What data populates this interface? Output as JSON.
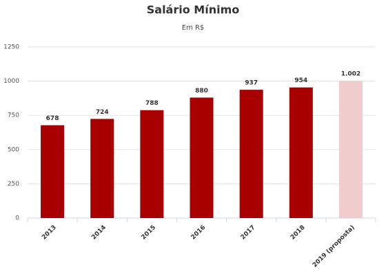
{
  "chart_data": {
    "type": "bar",
    "title": "Salário Mínimo",
    "subtitle": "Em R$",
    "categories": [
      "2013",
      "2014",
      "2015",
      "2016",
      "2017",
      "2018",
      "2019 (proposta)"
    ],
    "values": [
      678,
      724,
      788,
      880,
      937,
      954,
      1002
    ],
    "value_labels": [
      "678",
      "724",
      "788",
      "880",
      "937",
      "954",
      "1.002"
    ],
    "colors": [
      "#a80000",
      "#a80000",
      "#a80000",
      "#a80000",
      "#a80000",
      "#a80000",
      "#f0cccc"
    ],
    "ylim": [
      0,
      1250
    ],
    "yticks": [
      0,
      250,
      500,
      750,
      1000,
      1250
    ],
    "grid": true
  }
}
